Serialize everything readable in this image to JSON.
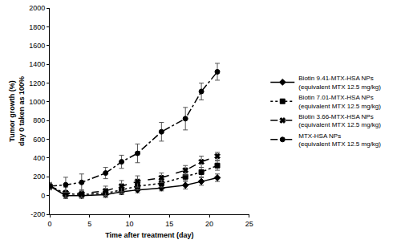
{
  "chart_data": {
    "type": "line",
    "x_label": "Time after treatment (day)",
    "y_label": "Tumor growth (%) day 0 taken as 100%",
    "x": [
      0,
      2,
      4,
      7,
      9,
      11,
      14,
      17,
      19,
      21
    ],
    "series": [
      {
        "name": "Biotin 9.41-MTX-HSA NPs (equivalent MTX 12.5 mg/kg)",
        "color": "#000000",
        "marker": "diamond",
        "line_style": "solid",
        "values": [
          100,
          0,
          0,
          10,
          40,
          60,
          80,
          110,
          150,
          190
        ],
        "errors": [
          30,
          30,
          30,
          30,
          30,
          30,
          30,
          40,
          40,
          40
        ]
      },
      {
        "name": "Biotin 7.01-MTX-HSA NPs (equivalent MTX 12.5 mg/kg)",
        "color": "#000000",
        "marker": "square",
        "line_style": "dot",
        "values": [
          100,
          20,
          10,
          25,
          60,
          100,
          130,
          200,
          250,
          320
        ],
        "errors": [
          30,
          30,
          30,
          40,
          40,
          40,
          40,
          40,
          50,
          50
        ]
      },
      {
        "name": "Biotin 3.66-MTX-HSA NPs (equivalent MTX 12.5 mg/kg)",
        "color": "#000000",
        "marker": "x",
        "line_style": "dash",
        "values": [
          100,
          30,
          20,
          50,
          100,
          150,
          190,
          270,
          360,
          420
        ],
        "errors": [
          40,
          60,
          40,
          50,
          60,
          60,
          50,
          50,
          60,
          40
        ]
      },
      {
        "name": "MTX-HSA NPs (equivalent MTX 12.5 mg/kg)",
        "color": "#000000",
        "marker": "circle",
        "line_style": "dashdot",
        "values": [
          100,
          115,
          140,
          240,
          360,
          450,
          680,
          820,
          1110,
          1320
        ],
        "errors": [
          30,
          80,
          90,
          60,
          70,
          100,
          100,
          120,
          90,
          90
        ]
      }
    ],
    "xlim": [
      0,
      25
    ],
    "xticks": [
      0,
      5,
      10,
      15,
      20,
      25
    ],
    "ylim": [
      -200,
      2000
    ],
    "yticks": [
      -200,
      0,
      200,
      400,
      600,
      800,
      1000,
      1200,
      1400,
      1600,
      1800,
      2000
    ],
    "grid": false,
    "legend": "right"
  }
}
